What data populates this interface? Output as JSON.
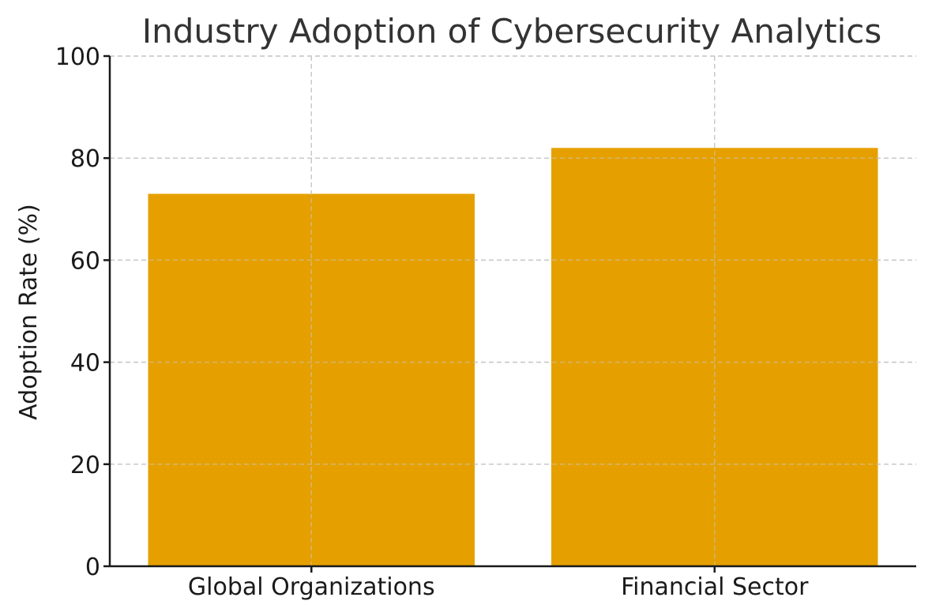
{
  "chart_data": {
    "type": "bar",
    "title": "Industry Adoption of Cybersecurity Analytics",
    "xlabel": "",
    "ylabel": "Adoption Rate (%)",
    "categories": [
      "Global Organizations",
      "Financial Sector"
    ],
    "values": [
      73,
      82
    ],
    "ylim": [
      0,
      100
    ],
    "yticks": [
      0,
      20,
      40,
      60,
      80,
      100
    ],
    "grid": true,
    "bar_color": "#E5A000"
  }
}
